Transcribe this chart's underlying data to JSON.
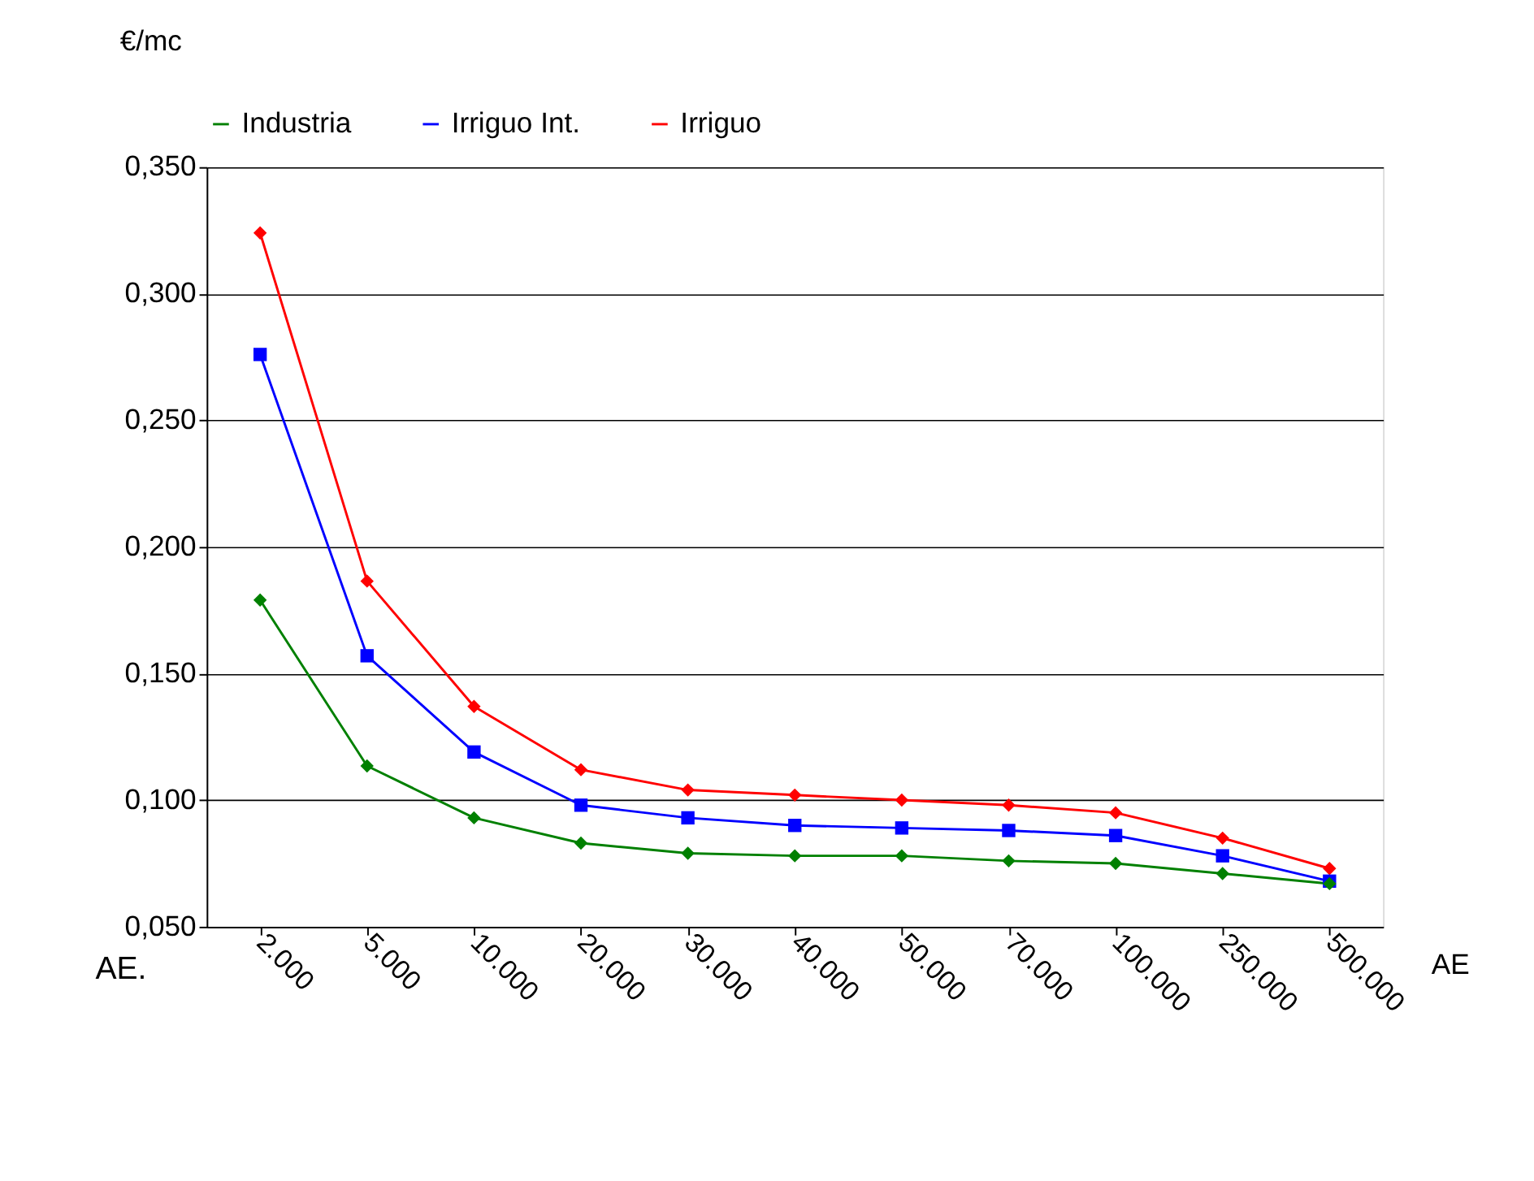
{
  "chart_data": {
    "type": "line",
    "ylabel": "€/mc",
    "xlabel": "AE",
    "annotations": [
      "AE."
    ],
    "categories": [
      "2.000",
      "5.000",
      "10.000",
      "20.000",
      "30.000",
      "40.000",
      "50.000",
      "70.000",
      "100.000",
      "250.000",
      "500.000"
    ],
    "series": [
      {
        "name": "Industria",
        "color": "#008000",
        "marker": "diamond",
        "values": [
          0.179,
          0.1135,
          0.093,
          0.083,
          0.079,
          0.078,
          0.078,
          0.076,
          0.075,
          0.071,
          0.067
        ]
      },
      {
        "name": "Irriguo Int.",
        "color": "#0000ff",
        "marker": "square",
        "values": [
          0.276,
          0.157,
          0.119,
          0.098,
          0.093,
          0.09,
          0.089,
          0.088,
          0.086,
          0.078,
          0.068
        ]
      },
      {
        "name": "Irriguo",
        "color": "#ff0000",
        "marker": "diamond",
        "values": [
          0.324,
          0.1865,
          0.137,
          0.112,
          0.104,
          0.102,
          0.1,
          0.098,
          0.095,
          0.085,
          0.073
        ]
      }
    ],
    "ylim": [
      0.05,
      0.35
    ],
    "yticks": [
      {
        "value": 0.05,
        "label": "0,050"
      },
      {
        "value": 0.1,
        "label": "0,100"
      },
      {
        "value": 0.15,
        "label": "0,150"
      },
      {
        "value": 0.2,
        "label": "0,200"
      },
      {
        "value": 0.25,
        "label": "0,250"
      },
      {
        "value": 0.3,
        "label": "0,300"
      },
      {
        "value": 0.35,
        "label": "0,350"
      }
    ],
    "grid": "y",
    "legend": "top",
    "line_style": "solid"
  }
}
